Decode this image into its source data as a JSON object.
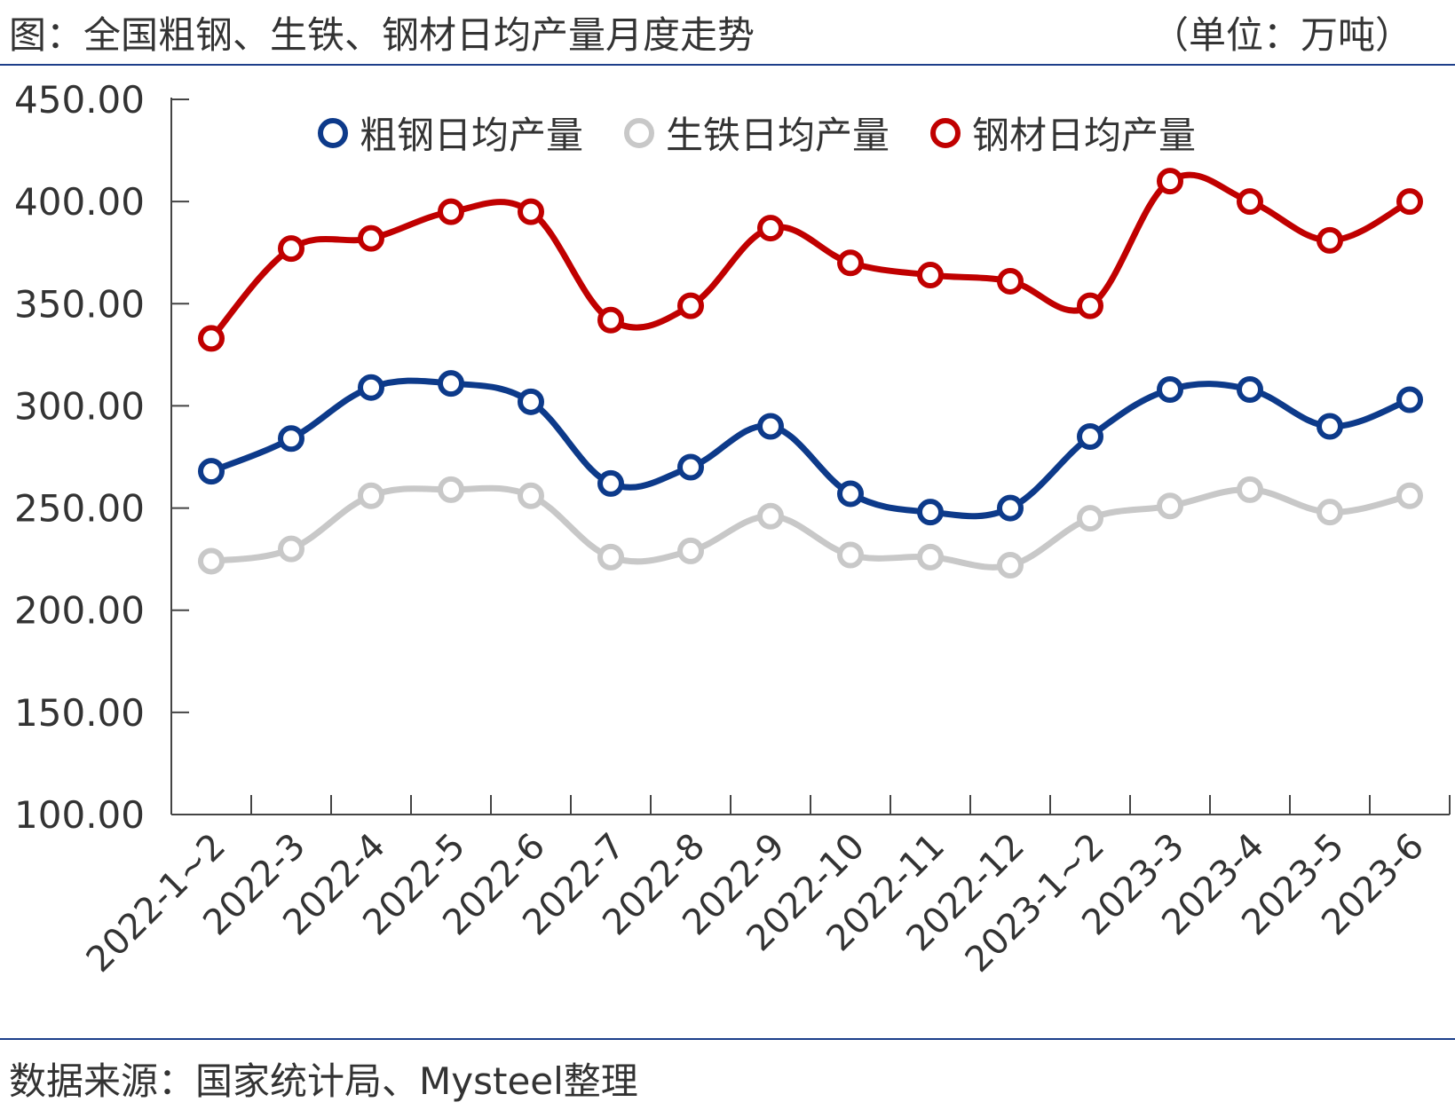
{
  "header": {
    "title": "图：全国粗钢、生铁、钢材日均产量月度走势",
    "unit": "（单位：万吨）"
  },
  "footer": {
    "source": "数据来源：国家统计局、Mysteel整理"
  },
  "colors": {
    "crude_steel": "#0d3a8a",
    "pig_iron": "#c8c8c8",
    "steel_products": "#c00000",
    "rule": "#1d3f8a",
    "text": "#333333"
  },
  "chart_data": {
    "type": "line",
    "categories": [
      "2022-1~2",
      "2022-3",
      "2022-4",
      "2022-5",
      "2022-6",
      "2022-7",
      "2022-8",
      "2022-9",
      "2022-10",
      "2022-11",
      "2022-12",
      "2023-1~2",
      "2023-3",
      "2023-4",
      "2023-5",
      "2023-6"
    ],
    "series": [
      {
        "name": "粗钢日均产量",
        "color": "#0d3a8a",
        "values": [
          268,
          284,
          309,
          311,
          302,
          262,
          270,
          290,
          257,
          248,
          250,
          285,
          308,
          308,
          290,
          303
        ]
      },
      {
        "name": "生铁日均产量",
        "color": "#c8c8c8",
        "values": [
          224,
          230,
          256,
          259,
          256,
          226,
          229,
          246,
          227,
          226,
          222,
          245,
          251,
          259,
          248,
          256
        ]
      },
      {
        "name": "钢材日均产量",
        "color": "#c00000",
        "values": [
          333,
          377,
          382,
          395,
          395,
          342,
          349,
          387,
          370,
          364,
          361,
          349,
          410,
          400,
          381,
          400
        ]
      }
    ],
    "ylim": [
      100,
      450
    ],
    "yticks": [
      "100.00",
      "150.00",
      "200.00",
      "250.00",
      "300.00",
      "350.00",
      "400.00",
      "450.00"
    ],
    "grid": false,
    "legend": "top",
    "marker": "hollow-circle",
    "smooth": true
  }
}
